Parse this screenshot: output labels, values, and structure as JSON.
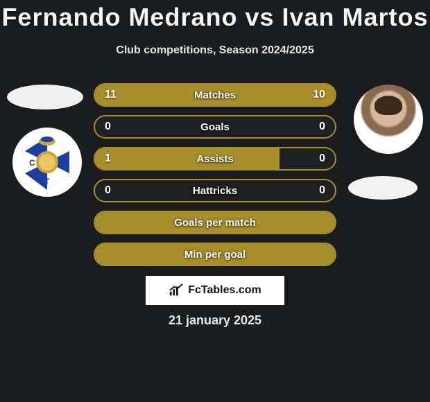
{
  "title": "Fernando Medrano vs Ivan Martos",
  "subtitle": "Club competitions, Season 2024/2025",
  "date": "21 january 2025",
  "watermark": "FcTables.com",
  "colors": {
    "olive": "#a88f2b",
    "olive_fill": "#a88f2b",
    "olive_border": "#a88f2b",
    "dark_bg": "#1a1c1e",
    "crest_blue": "#1c3fa0",
    "crest_gold": "#c9a43a"
  },
  "rows": [
    {
      "label": "Matches",
      "left": "11",
      "right": "10",
      "lpct": 52,
      "rpct": 48,
      "lcolor": "#a88f2b",
      "rcolor": "#a88f2b"
    },
    {
      "label": "Goals",
      "left": "0",
      "right": "0",
      "lpct": 0,
      "rpct": 0,
      "lcolor": "#a88f2b",
      "rcolor": "#a88f2b"
    },
    {
      "label": "Assists",
      "left": "1",
      "right": "0",
      "lpct": 77,
      "rpct": 0,
      "lcolor": "#a88f2b",
      "rcolor": "#a88f2b"
    },
    {
      "label": "Hattricks",
      "left": "0",
      "right": "0",
      "lpct": 0,
      "rpct": 0,
      "lcolor": "#a88f2b",
      "rcolor": "#a88f2b"
    },
    {
      "label": "Goals per match",
      "left": "",
      "right": "",
      "lpct": 100,
      "rpct": 0,
      "lcolor": "#a88f2b",
      "rcolor": "#a88f2b",
      "full": true
    },
    {
      "label": "Min per goal",
      "left": "",
      "right": "",
      "lpct": 100,
      "rpct": 0,
      "lcolor": "#a88f2b",
      "rcolor": "#a88f2b",
      "full": true
    }
  ]
}
